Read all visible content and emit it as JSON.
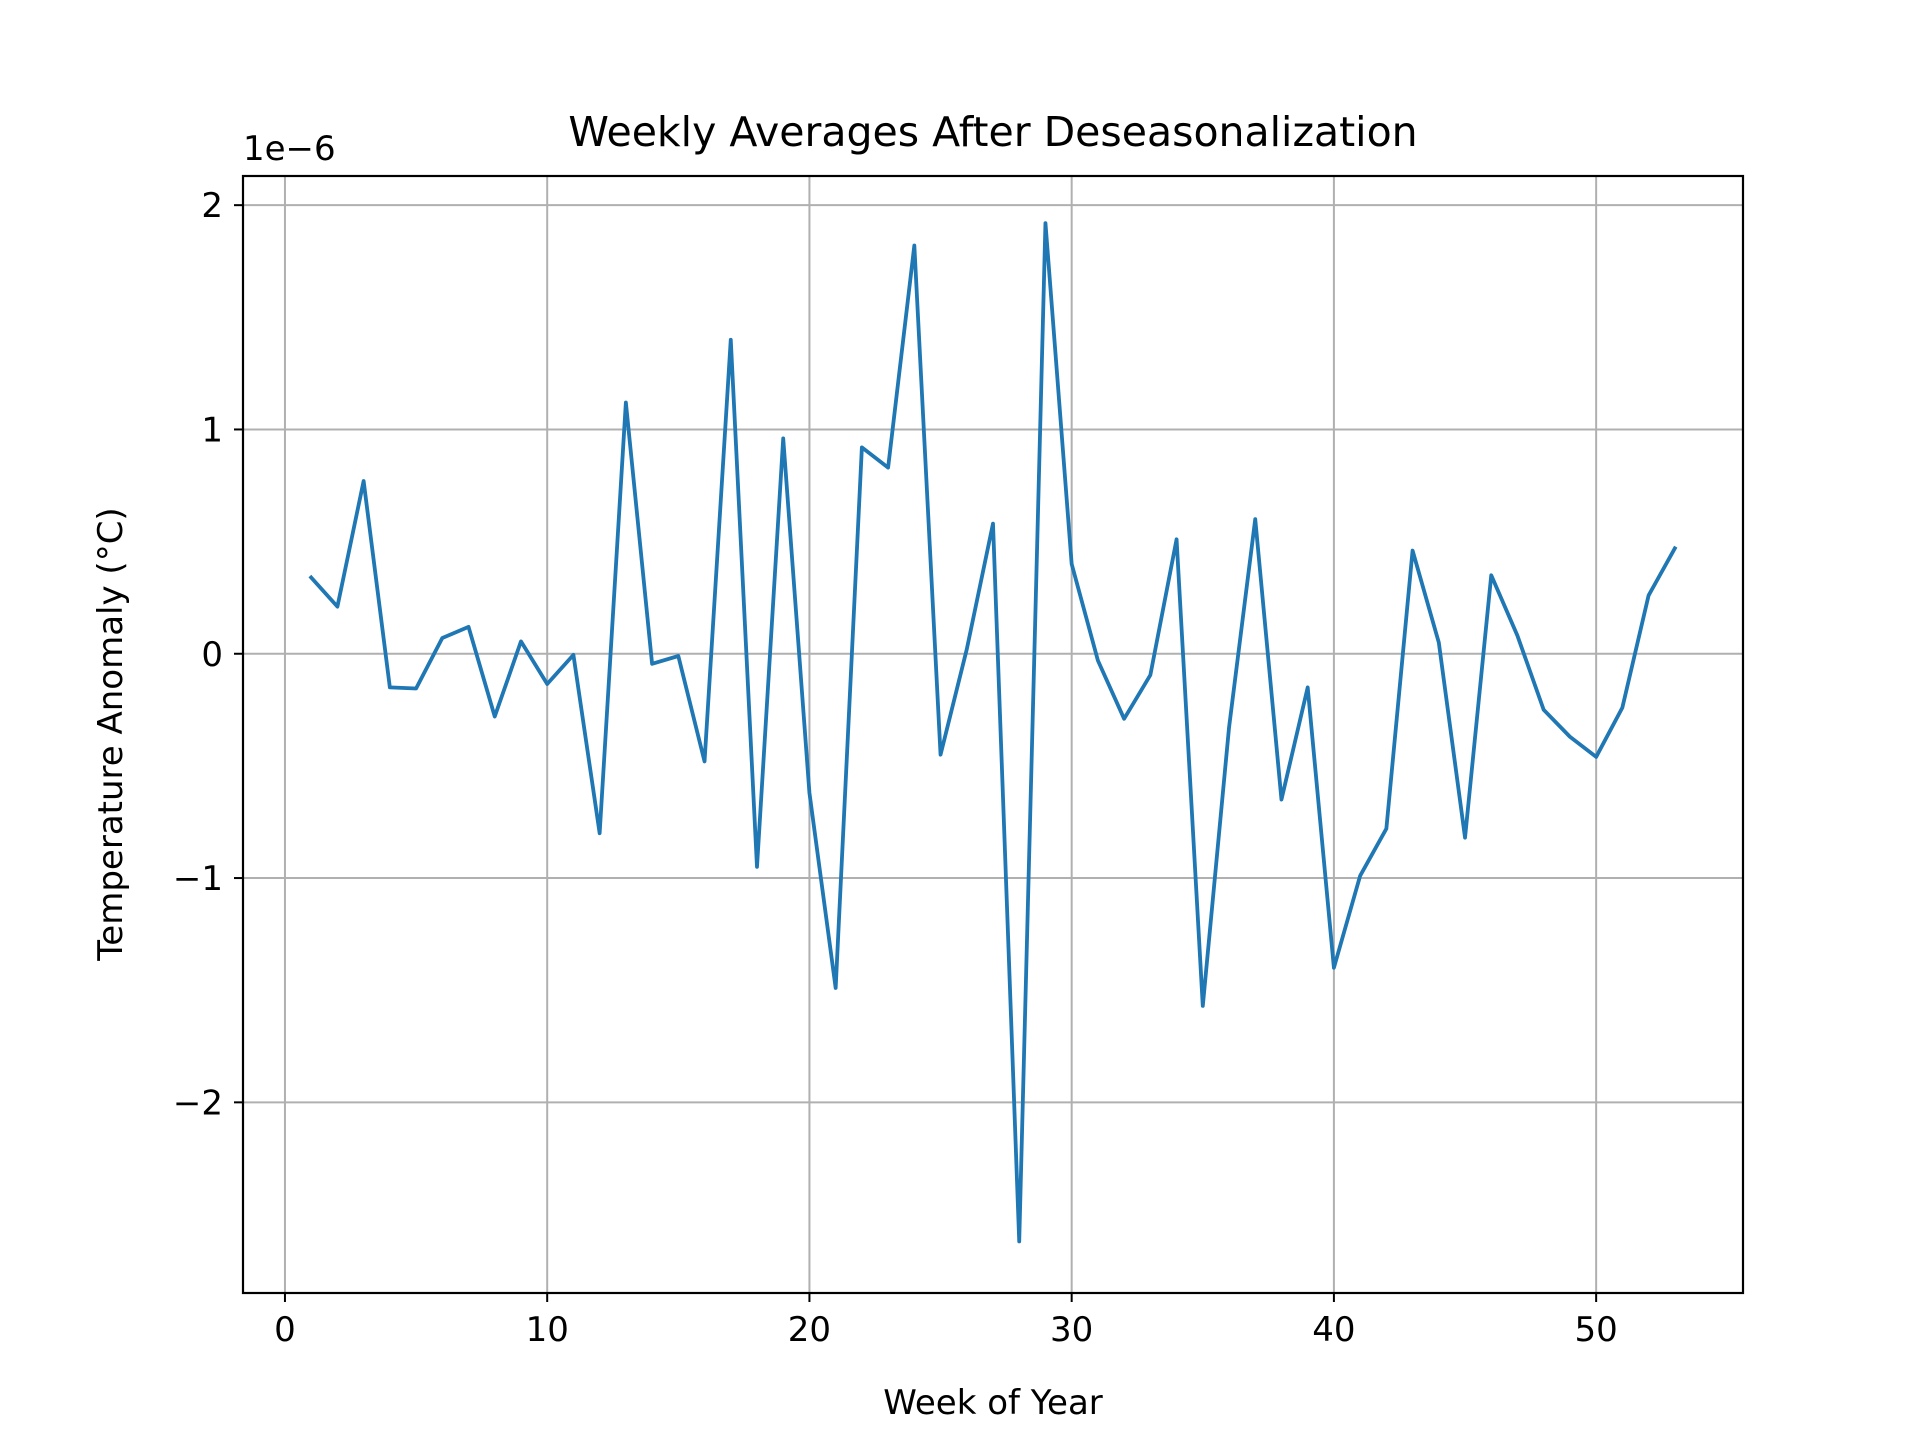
{
  "chart_data": {
    "type": "line",
    "title": "Weekly Averages After Deseasonalization",
    "xlabel": "Week of Year",
    "ylabel": "Temperature Anomaly (°C)",
    "y_scale_label": "1e−6",
    "y_scale_factor": 1e-06,
    "xlim": [
      -1.6,
      55.6
    ],
    "ylim": [
      -2.85,
      2.13
    ],
    "x_ticks": [
      0,
      10,
      20,
      30,
      40,
      50
    ],
    "x_tick_labels": [
      "0",
      "10",
      "20",
      "30",
      "40",
      "50"
    ],
    "y_ticks": [
      -2,
      -1,
      0,
      1,
      2
    ],
    "y_tick_labels": [
      "−2",
      "−1",
      "0",
      "1",
      "2"
    ],
    "grid": true,
    "legend": "none",
    "series": [
      {
        "color": "#1f77b4",
        "x": [
          1,
          2,
          3,
          4,
          5,
          6,
          7,
          8,
          9,
          10,
          11,
          12,
          13,
          14,
          15,
          16,
          17,
          18,
          19,
          20,
          21,
          22,
          23,
          24,
          25,
          26,
          27,
          28,
          29,
          30,
          31,
          32,
          33,
          34,
          35,
          36,
          37,
          38,
          39,
          40,
          41,
          42,
          43,
          44,
          45,
          46,
          47,
          48,
          49,
          50,
          51,
          52,
          53
        ],
        "y": [
          0.34,
          0.21,
          0.77,
          -0.15,
          -0.155,
          0.07,
          0.12,
          -0.28,
          0.055,
          -0.135,
          -0.005,
          -0.8,
          1.12,
          -0.045,
          -0.01,
          -0.48,
          1.4,
          -0.95,
          0.96,
          -0.62,
          -1.49,
          0.92,
          0.83,
          1.82,
          -0.45,
          0.02,
          0.58,
          -2.62,
          1.92,
          0.4,
          -0.03,
          -0.29,
          -0.095,
          0.51,
          -1.57,
          -0.33,
          0.6,
          -0.65,
          -0.15,
          -1.4,
          -0.99,
          -0.78,
          0.46,
          0.05,
          -0.82,
          0.35,
          0.08,
          -0.25,
          -0.37,
          -0.46,
          -0.24,
          0.26,
          0.47
        ]
      }
    ]
  }
}
